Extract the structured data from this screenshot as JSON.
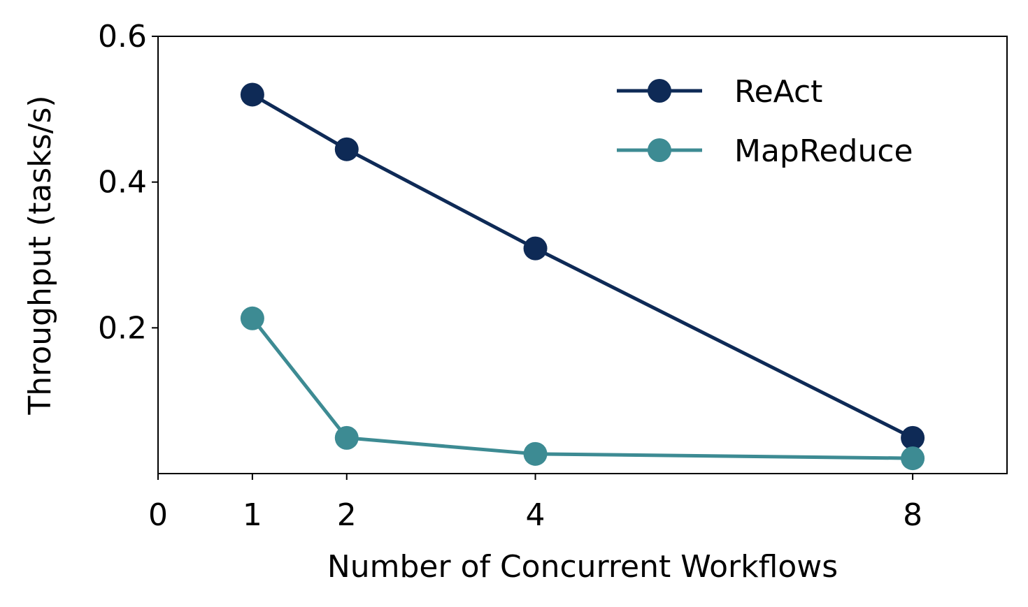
{
  "chart_data": {
    "type": "line",
    "xlabel": "Number of Concurrent Workflows",
    "ylabel": "Throughput (tasks/s)",
    "x": [
      1,
      2,
      4,
      8
    ],
    "series": [
      {
        "name": "ReAct",
        "color": "#0e2a56",
        "values": [
          0.52,
          0.445,
          0.309,
          0.049
        ]
      },
      {
        "name": "MapReduce",
        "color": "#3d8b93",
        "values": [
          0.213,
          0.049,
          0.027,
          0.021
        ]
      }
    ],
    "xlim": [
      0,
      9
    ],
    "xticks": [
      0,
      1,
      2,
      4,
      8
    ],
    "ylim": [
      0,
      0.6
    ],
    "yticks": [
      0.2,
      0.4,
      0.6
    ],
    "grid": false,
    "legend": "upper right"
  }
}
